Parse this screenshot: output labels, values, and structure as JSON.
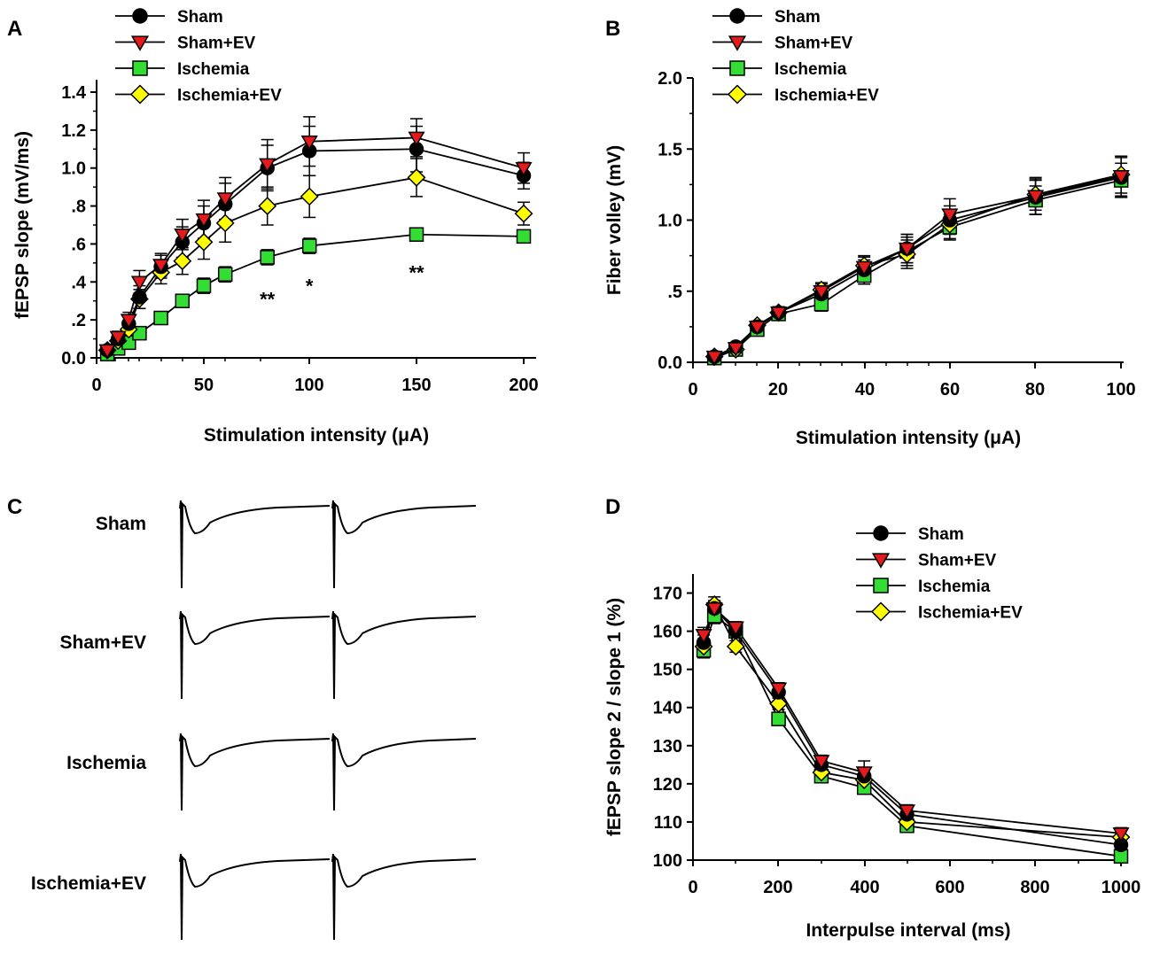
{
  "legend": [
    {
      "key": "sham",
      "label": "Sham",
      "marker": "circle",
      "color": "#000000"
    },
    {
      "key": "shamEV",
      "label": "Sham+EV",
      "marker": "triangle-down",
      "color": "#e41a1c"
    },
    {
      "key": "isch",
      "label": "Ischemia",
      "marker": "square",
      "color": "#33dd33"
    },
    {
      "key": "ischEV",
      "label": "Ischemia+EV",
      "marker": "diamond",
      "color": "#ffff00"
    }
  ],
  "chart_data": [
    {
      "panel": "A",
      "type": "line",
      "xlabel": "Stimulation intensity (μA)",
      "ylabel": "fEPSP slope (mV/ms)",
      "x_positions": [
        5,
        10,
        15,
        20,
        30,
        40,
        50,
        60,
        80,
        100,
        150,
        200
      ],
      "x_tick_labels": [
        "0",
        "50",
        "100",
        "150",
        "200"
      ],
      "y_tick_labels": [
        "0.0",
        ".2",
        ".4",
        ".6",
        ".8",
        "1.0",
        "1.2",
        "1.4"
      ],
      "ylim": [
        0,
        1.4
      ],
      "series": [
        {
          "key": "sham",
          "name": "Sham",
          "values": [
            0.04,
            0.1,
            0.18,
            0.32,
            0.48,
            0.61,
            0.71,
            0.81,
            1.0,
            1.09,
            1.1,
            0.96
          ],
          "errors": [
            0.02,
            0.03,
            0.04,
            0.06,
            0.06,
            0.08,
            0.09,
            0.11,
            0.12,
            0.13,
            0.12,
            0.07
          ]
        },
        {
          "key": "shamEV",
          "name": "Sham+EV",
          "values": [
            0.04,
            0.11,
            0.2,
            0.4,
            0.49,
            0.65,
            0.73,
            0.84,
            1.02,
            1.14,
            1.16,
            1.0
          ],
          "errors": [
            0.02,
            0.03,
            0.04,
            0.06,
            0.06,
            0.08,
            0.1,
            0.11,
            0.13,
            0.13,
            0.1,
            0.08
          ]
        },
        {
          "key": "isch",
          "name": "Ischemia",
          "values": [
            0.02,
            0.05,
            0.08,
            0.13,
            0.21,
            0.3,
            0.38,
            0.44,
            0.53,
            0.59,
            0.65,
            0.64
          ],
          "errors": [
            0.01,
            0.01,
            0.02,
            0.02,
            0.03,
            0.03,
            0.04,
            0.04,
            0.04,
            0.04,
            0.03,
            0.03
          ]
        },
        {
          "key": "ischEV",
          "name": "Ischemia+EV",
          "values": [
            0.04,
            0.09,
            0.15,
            0.31,
            0.45,
            0.51,
            0.61,
            0.71,
            0.8,
            0.85,
            0.95,
            0.76
          ],
          "errors": [
            0.02,
            0.02,
            0.03,
            0.05,
            0.06,
            0.07,
            0.09,
            0.1,
            0.1,
            0.11,
            0.1,
            0.06
          ]
        }
      ],
      "annotations": [
        {
          "text": "**",
          "at_index": 8,
          "y": 0.32
        },
        {
          "text": "*",
          "at_index": 9,
          "y": 0.39
        },
        {
          "text": "**",
          "at_index": 10,
          "y": 0.46
        }
      ]
    },
    {
      "panel": "B",
      "type": "line",
      "xlabel": "Stimulation intensity (μA)",
      "ylabel": "Fiber volley (mV)",
      "x_positions": [
        5,
        10,
        15,
        20,
        30,
        40,
        50,
        60,
        80,
        100
      ],
      "x_tick_labels": [
        "0",
        "20",
        "40",
        "60",
        "80",
        "100"
      ],
      "y_tick_labels": [
        "0.0",
        ".5",
        "1.0",
        "1.5",
        "2.0"
      ],
      "ylim": [
        0,
        2.0
      ],
      "series": [
        {
          "key": "sham",
          "name": "Sham",
          "values": [
            0.04,
            0.11,
            0.25,
            0.35,
            0.48,
            0.65,
            0.8,
            1.0,
            1.16,
            1.3
          ],
          "errors": [
            0.01,
            0.02,
            0.03,
            0.04,
            0.05,
            0.07,
            0.1,
            0.1,
            0.12,
            0.14
          ]
        },
        {
          "key": "shamEV",
          "name": "Sham+EV",
          "values": [
            0.04,
            0.1,
            0.25,
            0.35,
            0.5,
            0.67,
            0.8,
            1.04,
            1.17,
            1.31
          ],
          "errors": [
            0.01,
            0.02,
            0.03,
            0.04,
            0.05,
            0.07,
            0.1,
            0.11,
            0.13,
            0.14
          ]
        },
        {
          "key": "isch",
          "name": "Ischemia",
          "values": [
            0.03,
            0.09,
            0.23,
            0.34,
            0.41,
            0.61,
            0.78,
            0.95,
            1.14,
            1.28
          ],
          "errors": [
            0.01,
            0.02,
            0.03,
            0.04,
            0.05,
            0.06,
            0.1,
            0.09,
            0.1,
            0.12
          ]
        },
        {
          "key": "ischEV",
          "name": "Ischemia+EV",
          "values": [
            0.04,
            0.09,
            0.26,
            0.35,
            0.51,
            0.68,
            0.76,
            0.97,
            1.18,
            1.32
          ],
          "errors": [
            0.01,
            0.02,
            0.03,
            0.04,
            0.05,
            0.07,
            0.1,
            0.1,
            0.11,
            0.13
          ]
        }
      ]
    },
    {
      "panel": "D",
      "type": "line",
      "xlabel": "Interpulse interval (ms)",
      "ylabel": "fEPSP slope 2 / slope 1 (%)",
      "x": [
        25,
        50,
        100,
        200,
        300,
        400,
        500,
        1000
      ],
      "xlim": [
        0,
        1000
      ],
      "x_tick_labels": [
        "0",
        "200",
        "400",
        "600",
        "800",
        "1000"
      ],
      "y_tick_labels": [
        "100",
        "110",
        "120",
        "130",
        "140",
        "150",
        "160",
        "170"
      ],
      "ylim": [
        100,
        175
      ],
      "series": [
        {
          "key": "sham",
          "name": "Sham",
          "values": [
            157,
            166,
            160,
            144,
            125,
            122,
            112,
            104
          ],
          "errors": [
            2,
            2,
            1.5,
            1.5,
            1.5,
            1.5,
            1.5,
            1.5
          ]
        },
        {
          "key": "shamEV",
          "name": "Sham+EV",
          "values": [
            159,
            166,
            161,
            145,
            126,
            123,
            113,
            107
          ],
          "errors": [
            2,
            2,
            1.5,
            1.5,
            1.5,
            3,
            1.5,
            1.5
          ]
        },
        {
          "key": "isch",
          "name": "Ischemia",
          "values": [
            155,
            164,
            160,
            137,
            122,
            119,
            109,
            101
          ],
          "errors": [
            2,
            2,
            1.5,
            1.5,
            1.5,
            1.5,
            1.5,
            1.5
          ]
        },
        {
          "key": "ischEV",
          "name": "Ischemia+EV",
          "values": [
            156,
            167,
            156,
            141,
            123,
            121,
            110,
            106
          ],
          "errors": [
            2,
            2,
            1.5,
            1.5,
            1.5,
            1.5,
            1.5,
            1.5
          ]
        }
      ]
    }
  ],
  "panel_letters": [
    "A",
    "B",
    "C",
    "D"
  ],
  "traces": {
    "labels": [
      "Sham",
      "Sham+EV",
      "Ischemia",
      "Ischemia+EV"
    ]
  }
}
